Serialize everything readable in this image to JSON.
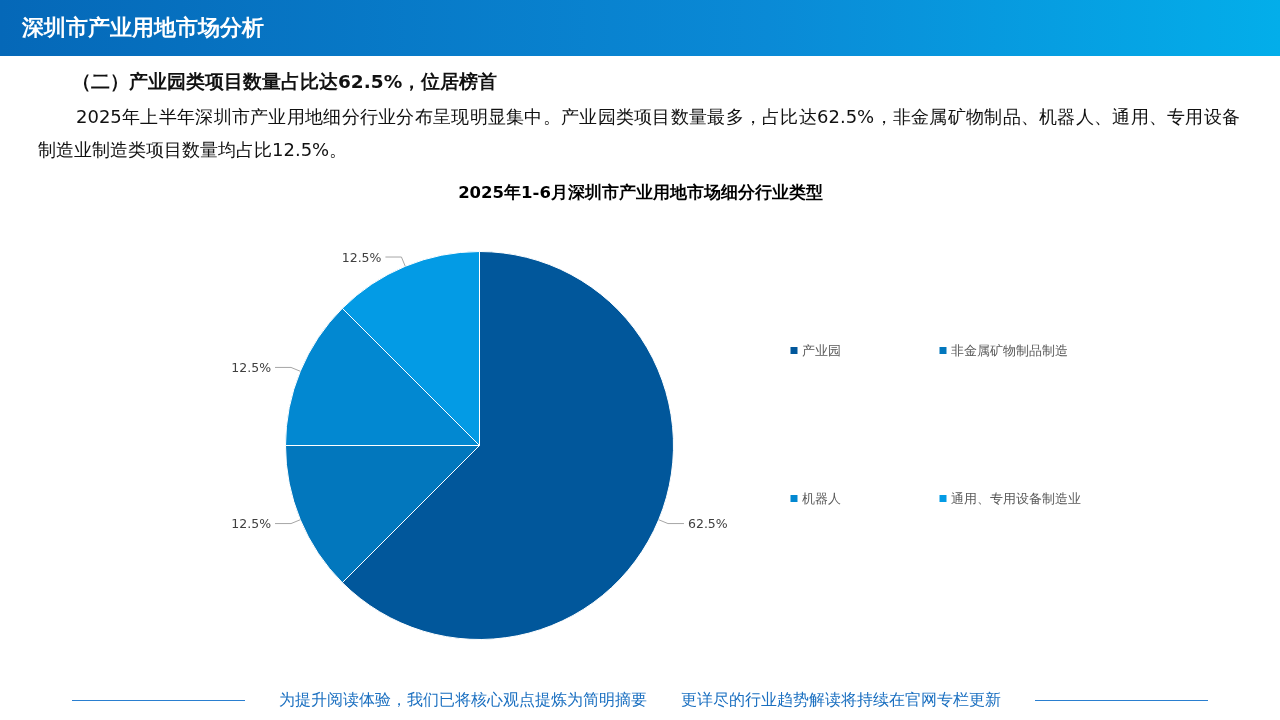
{
  "chart_data": {
    "type": "pie",
    "title": "2025年1-6月深圳市产业用地市场细分行业类型",
    "categories": [
      "产业园",
      "非金属矿物制品制造",
      "机器人",
      "通用、专用设备制造业"
    ],
    "values": [
      62.5,
      12.5,
      12.5,
      12.5
    ],
    "colors": [
      "#01579b",
      "#0277bd",
      "#0288d1",
      "#039be5"
    ],
    "value_labels": [
      "62.5%",
      "12.5%",
      "12.5%",
      "12.5%"
    ],
    "legend": "right",
    "annotations": [
      "深圳市产业用地市场分析",
      "（二）产业园类项目数量占比达62.5%，位居榜首",
      "2025年上半年深圳市产业用地细分行业分布呈现明显集中。产业园类项目数量最多，占比达62.5%，非金属矿物制品、机器人、通用、专用设备制造业制造类项目数量均占比12.5%。",
      "为提升阅读体验，我们已将核心观点提炼为简明摘要",
      "更详尽的行业趋势解读将持续在官网专栏更新"
    ]
  }
}
